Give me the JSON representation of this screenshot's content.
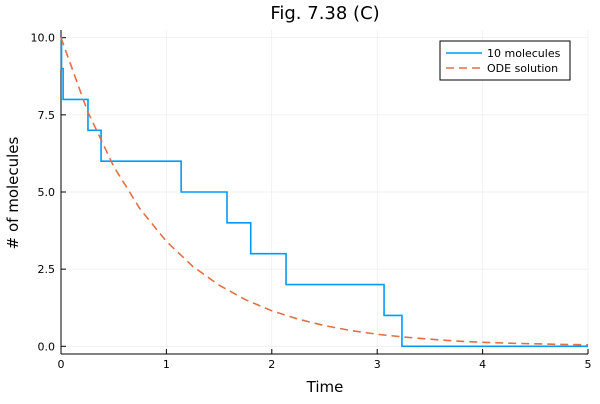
{
  "chart_data": {
    "type": "line",
    "title": "Fig. 7.38 (C)",
    "xlabel": "Time",
    "ylabel": "# of molecules",
    "xlim": [
      0,
      5
    ],
    "ylim": [
      -0.25,
      10.25
    ],
    "xticks": [
      "0",
      "1",
      "2",
      "3",
      "4",
      "5"
    ],
    "yticks": [
      "0.0",
      "2.5",
      "5.0",
      "7.5",
      "10.0"
    ],
    "grid": true,
    "legend_position": "top-right",
    "series": [
      {
        "name": "10 molecules",
        "style": "step",
        "color": "#009AFA",
        "x": [
          0,
          0.005,
          0.02,
          0.256,
          0.38,
          1.14,
          1.575,
          1.8,
          2.135,
          3.065,
          3.235,
          5
        ],
        "y": [
          10,
          9,
          8,
          7,
          6,
          5,
          4,
          3,
          2,
          1,
          0,
          0
        ]
      },
      {
        "name": "ODE solution",
        "style": "dashed",
        "color": "#E26F46",
        "x": [
          0,
          0.25,
          0.5,
          0.75,
          1,
          1.25,
          1.5,
          1.75,
          2,
          2.25,
          2.5,
          2.75,
          3,
          3.25,
          3.5,
          3.75,
          4,
          4.25,
          4.5,
          4.75,
          5
        ],
        "y": [
          10,
          7.63,
          5.83,
          4.45,
          3.4,
          2.59,
          1.98,
          1.51,
          1.15,
          0.88,
          0.67,
          0.51,
          0.39,
          0.3,
          0.23,
          0.17,
          0.13,
          0.1,
          0.08,
          0.06,
          0.05
        ]
      }
    ]
  }
}
